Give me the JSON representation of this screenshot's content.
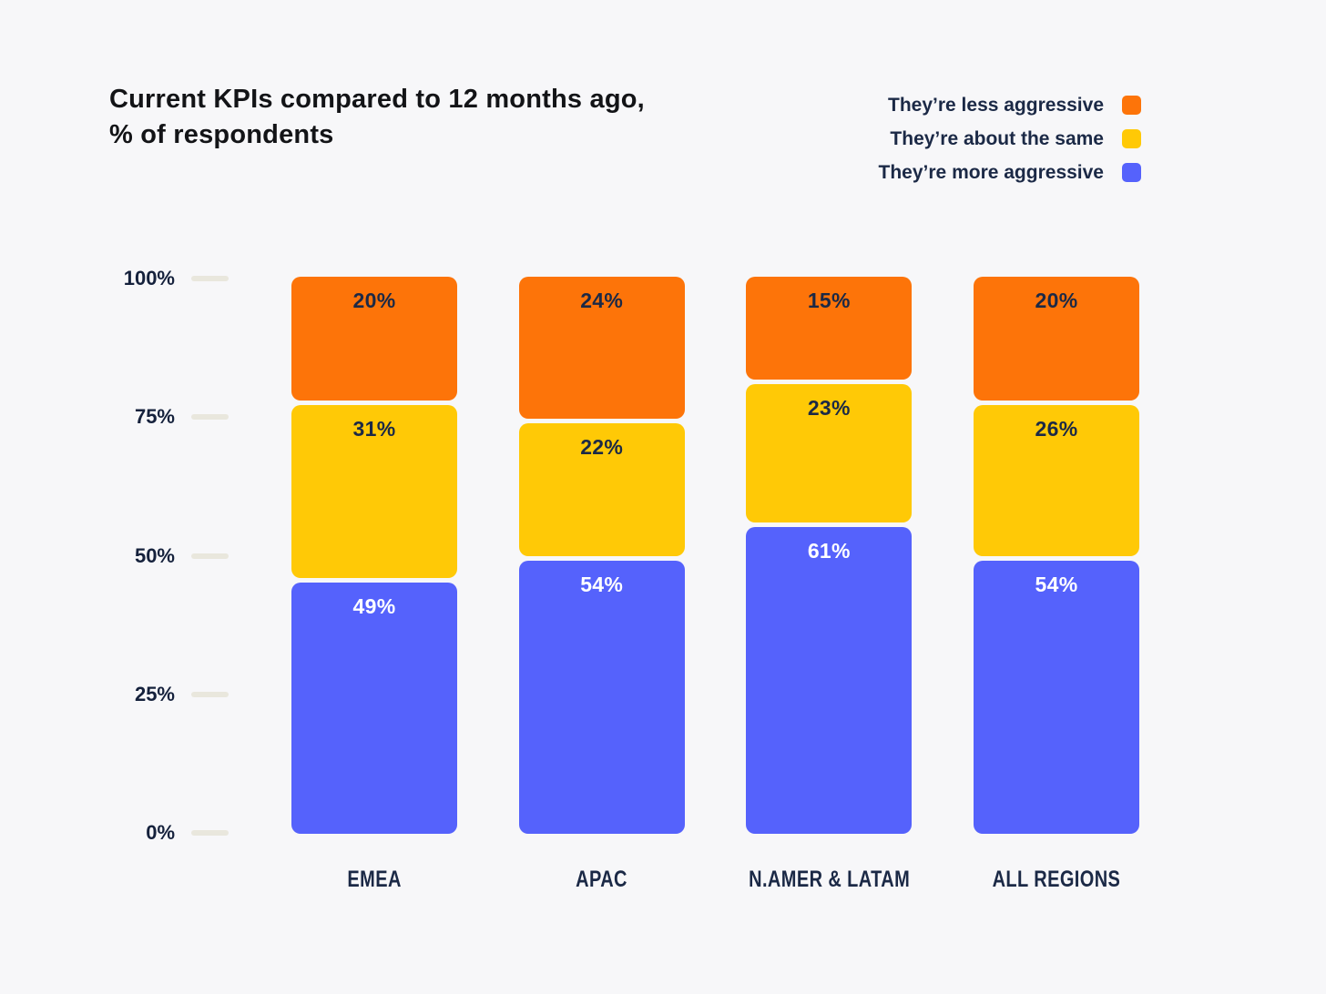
{
  "header": {
    "title_line1": "Current KPIs compared to 12 months ago,",
    "title_line2": "% of respondents"
  },
  "colors": {
    "background": "#f7f7f9",
    "title_text": "#131417",
    "label_text": "#1b2946",
    "axis_tick_dash": "#e9e7dd"
  },
  "chart_data": {
    "type": "bar",
    "stacked": true,
    "title": "Current KPIs compared to 12 months ago, % of respondents",
    "categories": [
      "EMEA",
      "APAC",
      "N.AMER & LATAM",
      "ALL REGIONS"
    ],
    "series": [
      {
        "name": "They’re less aggressive",
        "color": "#fd7409",
        "value_label_color": "#1b2946",
        "values": [
          20,
          24,
          15,
          20
        ]
      },
      {
        "name": "They’re about the same",
        "color": "#ffc906",
        "value_label_color": "#1b2946",
        "values": [
          31,
          22,
          23,
          26
        ]
      },
      {
        "name": "They’re more aggressive",
        "color": "#5562fc",
        "value_label_color": "#ffffff",
        "values": [
          49,
          54,
          61,
          54
        ]
      }
    ],
    "value_label_suffix": "%",
    "y_axis": {
      "tick_labels": [
        "100%",
        "75%",
        "50%",
        "25%",
        "0%"
      ],
      "ylim": [
        0,
        100
      ],
      "grid": "off"
    },
    "legend_position": "top-right",
    "xlabel": "",
    "ylabel": ""
  }
}
